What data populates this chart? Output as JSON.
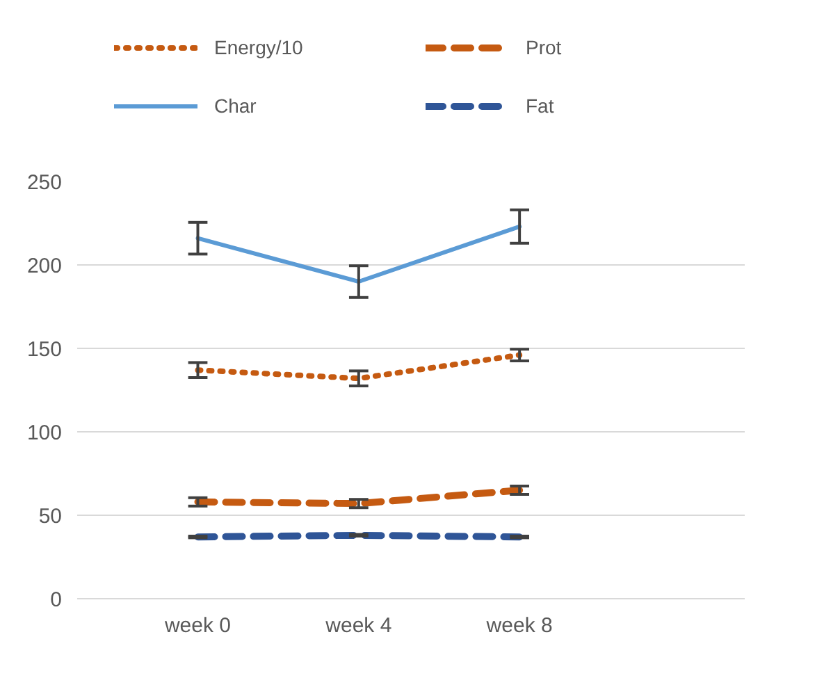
{
  "chart_data": {
    "type": "line",
    "categories": [
      "week 0",
      "week 4",
      "week 8"
    ],
    "series": [
      {
        "name": "Energy/10",
        "color": "#c55a11",
        "line_style": "dotted",
        "values": [
          137,
          132,
          146
        ],
        "errors": [
          4.5,
          4.5,
          3.5
        ]
      },
      {
        "name": "Char",
        "color": "#5b9bd5",
        "line_style": "solid",
        "values": [
          216,
          190,
          223
        ],
        "errors": [
          9.5,
          9.5,
          10
        ]
      },
      {
        "name": "Prot",
        "color": "#c55a11",
        "line_style": "dashed",
        "values": [
          58,
          57,
          65
        ],
        "errors": [
          2.5,
          2.5,
          2.5
        ]
      },
      {
        "name": "Fat",
        "color": "#2f5597",
        "line_style": "dashed",
        "values": [
          37,
          38,
          37
        ],
        "errors": [
          0.5,
          0.5,
          0.5
        ]
      }
    ],
    "ylim": [
      0,
      250
    ],
    "yticks": [
      0,
      50,
      100,
      150,
      200,
      250
    ],
    "grid": "y",
    "legend": "top"
  }
}
